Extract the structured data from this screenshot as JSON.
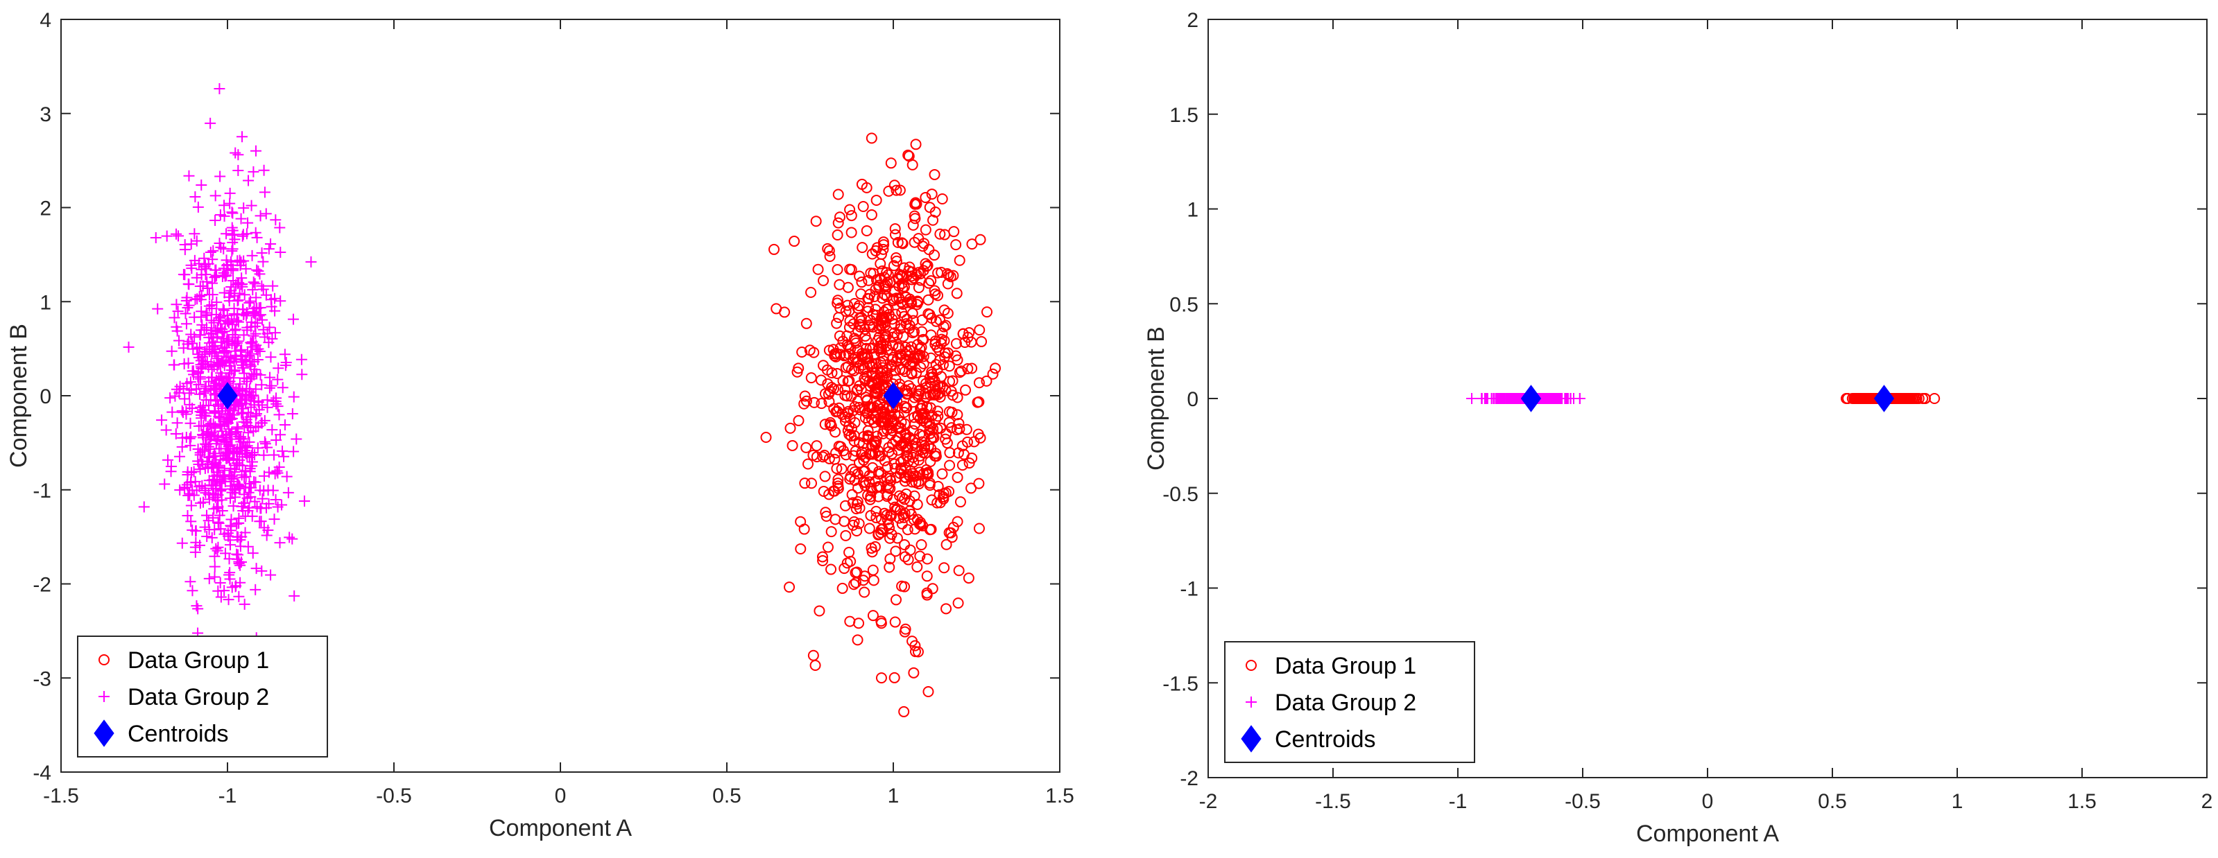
{
  "colors": {
    "group1": "#ff0000",
    "group2": "#ff00ff",
    "centroid": "#0000ff",
    "axis": "#262626"
  },
  "chart_data": [
    {
      "type": "scatter",
      "xlabel": "Component A",
      "ylabel": "Component B",
      "xlim": [
        -1.5,
        1.5
      ],
      "ylim": [
        -4,
        4
      ],
      "xticks": [
        -1.5,
        -1,
        -0.5,
        0,
        0.5,
        1,
        1.5
      ],
      "xtick_labels": [
        "-1.5",
        "-1",
        "-0.5",
        "0",
        "0.5",
        "1",
        "1.5"
      ],
      "yticks": [
        -4,
        -3,
        -2,
        -1,
        0,
        1,
        2,
        3,
        4
      ],
      "ytick_labels": [
        "-4",
        "-3",
        "-2",
        "-1",
        "0",
        "1",
        "2",
        "3",
        "4"
      ],
      "legend_position": "bottom-left",
      "series": [
        {
          "name": "Data Group 1",
          "marker": "circle",
          "center": [
            1.0,
            0.0
          ],
          "spread": [
            0.12,
            1.0
          ],
          "count": 1000
        },
        {
          "name": "Data Group 2",
          "marker": "plus",
          "center": [
            -1.0,
            0.0
          ],
          "spread": [
            0.08,
            1.0
          ],
          "count": 1000
        },
        {
          "name": "Centroids",
          "marker": "diamond",
          "points": [
            [
              1.0,
              0.0
            ],
            [
              -1.0,
              0.0
            ]
          ]
        }
      ]
    },
    {
      "type": "scatter",
      "xlabel": "Component A",
      "ylabel": "Component B",
      "xlim": [
        -2,
        2
      ],
      "ylim": [
        -2,
        2
      ],
      "xticks": [
        -2,
        -1.5,
        -1,
        -0.5,
        0,
        0.5,
        1,
        1.5,
        2
      ],
      "xtick_labels": [
        "-2",
        "-1.5",
        "-1",
        "-0.5",
        "0",
        "0.5",
        "1",
        "1.5",
        "2"
      ],
      "yticks": [
        -2,
        -1.5,
        -1,
        -0.5,
        0,
        0.5,
        1,
        1.5,
        2
      ],
      "ytick_labels": [
        "-2",
        "-1.5",
        "-1",
        "-0.5",
        "0",
        "0.5",
        "1",
        "1.5",
        "2"
      ],
      "legend_position": "bottom-left",
      "series": [
        {
          "name": "Data Group 1",
          "marker": "circle",
          "center": [
            0.707,
            0.0
          ],
          "spread": [
            0.06,
            0.0
          ],
          "count": 400
        },
        {
          "name": "Data Group 2",
          "marker": "plus",
          "center": [
            -0.707,
            0.0
          ],
          "spread": [
            0.07,
            0.0
          ],
          "count": 400
        },
        {
          "name": "Centroids",
          "marker": "diamond",
          "points": [
            [
              0.707,
              0.0
            ],
            [
              -0.707,
              0.0
            ]
          ]
        }
      ]
    }
  ]
}
